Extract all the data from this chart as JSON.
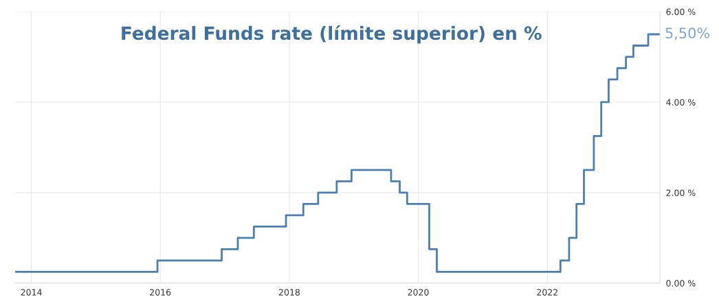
{
  "chart_data": {
    "type": "step",
    "title": "Federal Funds rate (límite superior) en %",
    "x": [
      "2013-10-01",
      "2015-12-16",
      "2016-12-14",
      "2017-03-15",
      "2017-06-14",
      "2017-12-13",
      "2018-03-21",
      "2018-06-13",
      "2018-09-26",
      "2018-12-19",
      "2019-07-31",
      "2019-09-18",
      "2019-10-30",
      "2020-03-03",
      "2020-04-15",
      "2022-03-16",
      "2022-05-04",
      "2022-06-15",
      "2022-07-27",
      "2022-09-21",
      "2022-11-02",
      "2022-12-14",
      "2023-02-01",
      "2023-03-22",
      "2023-05-03",
      "2023-07-26",
      "2023-09-25"
    ],
    "series": [
      {
        "color": "#4a7fb5",
        "values": [
          0.25,
          0.5,
          0.75,
          1.0,
          1.25,
          1.5,
          1.75,
          2.0,
          2.25,
          2.5,
          2.25,
          2.0,
          1.75,
          0.75,
          0.25,
          0.5,
          1.0,
          1.75,
          2.5,
          3.25,
          4.0,
          4.5,
          4.75,
          5.0,
          5.25,
          5.5,
          5.5
        ]
      }
    ],
    "xlim": [
      "2013-10-01",
      "2023-10-01"
    ],
    "xticks": [
      "2014",
      "2016",
      "2018",
      "2020",
      "2022"
    ],
    "ylim": [
      0,
      6
    ],
    "yticks": [
      {
        "value": 0,
        "label": "0.00 %"
      },
      {
        "value": 2,
        "label": "2.00 %"
      },
      {
        "value": 4,
        "label": "4.00 %"
      },
      {
        "value": 6,
        "label": "6.00 %"
      }
    ],
    "annotations": [
      {
        "text": "5,50%",
        "x": "2023-09-25",
        "y": 5.5
      }
    ],
    "grid": true,
    "legend": false
  }
}
